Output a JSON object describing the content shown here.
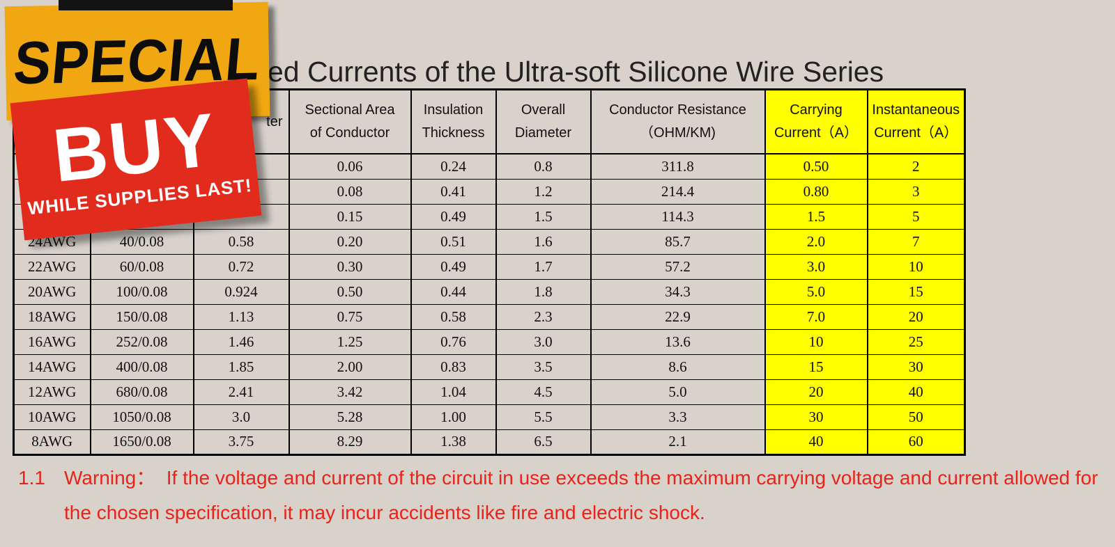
{
  "page": {
    "background": "#d8d2cb"
  },
  "title": "ed Currents of the Ultra-soft Silicone Wire Series",
  "badges": {
    "special": {
      "label": "SPECIAL",
      "bg": "#f0a712",
      "text_color": "#0d0d0d"
    },
    "buy": {
      "label": "BUY",
      "sub_label": "WHILE SUPPLIES LAST!",
      "bg": "#e12b1d",
      "text_color": "#ffffff"
    }
  },
  "table": {
    "highlight_color": "#ffff00",
    "headers": [
      {
        "line1": "",
        "line2": "",
        "highlight": false
      },
      {
        "line1": "",
        "line2": "",
        "highlight": false
      },
      {
        "line1": "",
        "line2": "ter",
        "highlight": false
      },
      {
        "line1": "Sectional Area",
        "line2": "of Conductor",
        "highlight": false
      },
      {
        "line1": "Insulation",
        "line2": "Thickness",
        "highlight": false
      },
      {
        "line1": "Overall",
        "line2": "Diameter",
        "highlight": false
      },
      {
        "line1": "Conductor Resistance",
        "line2": "（OHM/KM)",
        "highlight": false
      },
      {
        "line1": "Carrying",
        "line2": "Current（A）",
        "highlight": true
      },
      {
        "line1": "Instantaneous",
        "line2": "Current（A）",
        "highlight": true
      }
    ],
    "rows": [
      [
        "",
        "",
        "",
        "0.06",
        "0.24",
        "0.8",
        "311.8",
        "0.50",
        "2"
      ],
      [
        "",
        "",
        "",
        "0.08",
        "0.41",
        "1.2",
        "214.4",
        "0.80",
        "3"
      ],
      [
        "",
        "",
        "",
        "0.15",
        "0.49",
        "1.5",
        "114.3",
        "1.5",
        "5"
      ],
      [
        "24AWG",
        "40/0.08",
        "0.58",
        "0.20",
        "0.51",
        "1.6",
        "85.7",
        "2.0",
        "7"
      ],
      [
        "22AWG",
        "60/0.08",
        "0.72",
        "0.30",
        "0.49",
        "1.7",
        "57.2",
        "3.0",
        "10"
      ],
      [
        "20AWG",
        "100/0.08",
        "0.924",
        "0.50",
        "0.44",
        "1.8",
        "34.3",
        "5.0",
        "15"
      ],
      [
        "18AWG",
        "150/0.08",
        "1.13",
        "0.75",
        "0.58",
        "2.3",
        "22.9",
        "7.0",
        "20"
      ],
      [
        "16AWG",
        "252/0.08",
        "1.46",
        "1.25",
        "0.76",
        "3.0",
        "13.6",
        "10",
        "25"
      ],
      [
        "14AWG",
        "400/0.08",
        "1.85",
        "2.00",
        "0.83",
        "3.5",
        "8.6",
        "15",
        "30"
      ],
      [
        "12AWG",
        "680/0.08",
        "2.41",
        "3.42",
        "1.04",
        "4.5",
        "5.0",
        "20",
        "40"
      ],
      [
        "10AWG",
        "1050/0.08",
        "3.0",
        "5.28",
        "1.00",
        "5.5",
        "3.3",
        "30",
        "50"
      ],
      [
        "8AWG",
        "1650/0.08",
        "3.75",
        "8.29",
        "1.38",
        "6.5",
        "2.1",
        "40",
        "60"
      ]
    ]
  },
  "warning": {
    "number": "1.1",
    "text": "Warning：  If the voltage and current of the circuit in use exceeds the maximum carrying voltage and current allowed for the chosen specification, it may incur accidents like fire and electric shock.",
    "color": "#e8231a"
  }
}
